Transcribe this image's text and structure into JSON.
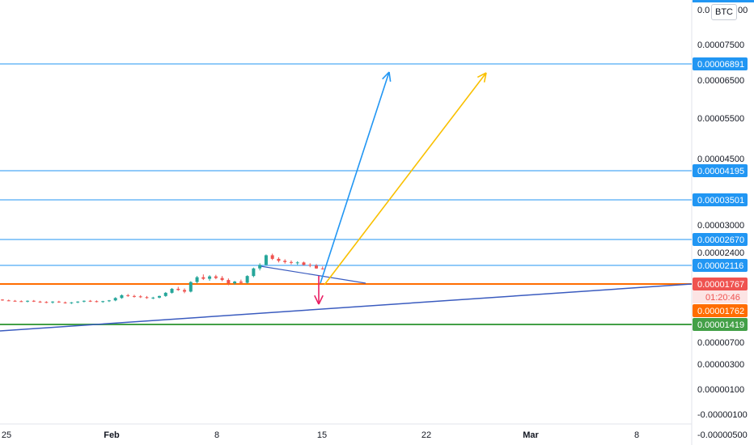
{
  "chart_data": {
    "type": "candlestick",
    "currency_badge": "BTC",
    "price_scale": {
      "top_labels": [
        "0.0",
        "00"
      ],
      "ticks": [
        "0.00007500",
        "0.00006500",
        "0.00005500",
        "0.00004500",
        "0.00003000",
        "0.00002400",
        "0.00000700",
        "0.00000300",
        "0.00000100",
        "-0.00000100",
        "-0.00000500"
      ]
    },
    "time_scale": {
      "ticks": [
        "25",
        "Feb",
        "8",
        "15",
        "22",
        "Mar",
        "8"
      ]
    },
    "horizontal_levels": [
      {
        "label": "0.00006891",
        "color": "#2196f3"
      },
      {
        "label": "0.00004195",
        "color": "#2196f3"
      },
      {
        "label": "0.00003501",
        "color": "#2196f3"
      },
      {
        "label": "0.00002670",
        "color": "#2196f3"
      },
      {
        "label": "0.00002116",
        "color": "#2196f3"
      },
      {
        "label": "0.00001767",
        "color": "#ef5350",
        "countdown": "01:20:46"
      },
      {
        "label": "0.00001762",
        "color": "#ff6d00"
      },
      {
        "label": "0.00001419",
        "color": "#43a047"
      }
    ],
    "colors": {
      "up": "#26a69a",
      "down": "#ef5350",
      "trendline": "#3a5bbf",
      "arrow_blue": "#2196f3",
      "arrow_yellow": "#f9c000",
      "arrow_down": "#e91e63"
    },
    "candles_ohlc_btc": [
      [
        9.9e-06,
        1e-05,
        9.6e-06,
        9.7e-06
      ],
      [
        9.7e-06,
        9.9e-06,
        9.5e-06,
        9.6e-06
      ],
      [
        9.6e-06,
        9.8e-06,
        9.4e-06,
        9.5e-06
      ],
      [
        9.5e-06,
        9.7e-06,
        9.3e-06,
        9.4e-06
      ],
      [
        9.4e-06,
        9.7e-06,
        9.2e-06,
        9.6e-06
      ],
      [
        9.6e-06,
        9.8e-06,
        9.3e-06,
        9.4e-06
      ],
      [
        9.4e-06,
        9.6e-06,
        9.1e-06,
        9.3e-06
      ],
      [
        9.3e-06,
        9.5e-06,
        9e-06,
        9.2e-06
      ],
      [
        9.2e-06,
        9.5e-06,
        8.9e-06,
        9.4e-06
      ],
      [
        9.4e-06,
        9.6e-06,
        9.1e-06,
        9.2e-06
      ],
      [
        9.2e-06,
        9.4e-06,
        8.9e-06,
        9e-06
      ],
      [
        9e-06,
        9.3e-06,
        8.8e-06,
        9.2e-06
      ],
      [
        9.2e-06,
        9.5e-06,
        9e-06,
        9.4e-06
      ],
      [
        9.4e-06,
        9.7e-06,
        9.2e-06,
        9.6e-06
      ],
      [
        9.6e-06,
        9.8e-06,
        9.3e-06,
        9.5e-06
      ],
      [
        9.5e-06,
        9.7e-06,
        9.2e-06,
        9.3e-06
      ],
      [
        9.3e-06,
        9.6e-06,
        9.1e-06,
        9.5e-06
      ],
      [
        9.5e-06,
        9.8e-06,
        9.3e-06,
        9.7e-06
      ],
      [
        9.7e-06,
        1.05e-05,
        9.5e-06,
        1.03e-05
      ],
      [
        1.03e-05,
        1.12e-05,
        1.01e-05,
        1.1e-05
      ],
      [
        1.1e-05,
        1.13e-05,
        1.06e-05,
        1.08e-05
      ],
      [
        1.08e-05,
        1.11e-05,
        1.04e-05,
        1.07e-05
      ],
      [
        1.07e-05,
        1.1e-05,
        1.03e-05,
        1.05e-05
      ],
      [
        1.05e-05,
        1.08e-05,
        1.01e-05,
        1.03e-05
      ],
      [
        1.03e-05,
        1.06e-05,
        1e-05,
        1.04e-05
      ],
      [
        1.04e-05,
        1.09e-05,
        1.02e-05,
        1.08e-05
      ],
      [
        1.08e-05,
        1.18e-05,
        1.06e-05,
        1.16e-05
      ],
      [
        1.16e-05,
        1.28e-05,
        1.14e-05,
        1.26e-05
      ],
      [
        1.26e-05,
        1.31e-05,
        1.21e-05,
        1.23e-05
      ],
      [
        1.23e-05,
        1.27e-05,
        1.15e-05,
        1.19e-05
      ],
      [
        1.19e-05,
        1.45e-05,
        1.17e-05,
        1.43e-05
      ],
      [
        1.43e-05,
        1.58e-05,
        1.39e-05,
        1.55e-05
      ],
      [
        1.55e-05,
        1.62e-05,
        1.48e-05,
        1.51e-05
      ],
      [
        1.51e-05,
        1.6e-05,
        1.46e-05,
        1.57e-05
      ],
      [
        1.57e-05,
        1.61e-05,
        1.5e-05,
        1.53e-05
      ],
      [
        1.53e-05,
        1.58e-05,
        1.45e-05,
        1.48e-05
      ],
      [
        1.48e-05,
        1.52e-05,
        1.35e-05,
        1.4e-05
      ],
      [
        1.4e-05,
        1.46e-05,
        1.36e-05,
        1.44e-05
      ],
      [
        1.44e-05,
        1.49e-05,
        1.39e-05,
        1.41e-05
      ],
      [
        1.41e-05,
        1.6e-05,
        1.39e-05,
        1.58e-05
      ],
      [
        1.58e-05,
        1.79e-05,
        1.55e-05,
        1.77e-05
      ],
      [
        1.77e-05,
        1.9e-05,
        1.72e-05,
        1.86e-05
      ],
      [
        1.86e-05,
        2.12e-05,
        1.84e-05,
        2.1e-05
      ],
      [
        2.1e-05,
        2.14e-05,
        1.98e-05,
        2.01e-05
      ],
      [
        2.01e-05,
        2.05e-05,
        1.92e-05,
        1.96e-05
      ],
      [
        1.96e-05,
        2e-05,
        1.89e-05,
        1.93e-05
      ],
      [
        1.93e-05,
        1.97e-05,
        1.87e-05,
        1.91e-05
      ],
      [
        1.91e-05,
        1.95e-05,
        1.86e-05,
        1.92e-05
      ],
      [
        1.92e-05,
        1.94e-05,
        1.84e-05,
        1.86e-05
      ],
      [
        1.86e-05,
        1.9e-05,
        1.8e-05,
        1.84e-05
      ],
      [
        1.84e-05,
        1.88e-05,
        1.76e-05,
        1.77e-05
      ],
      [
        1.77e-05,
        1.82e-05,
        1.74e-05,
        1.76e-05
      ]
    ]
  }
}
